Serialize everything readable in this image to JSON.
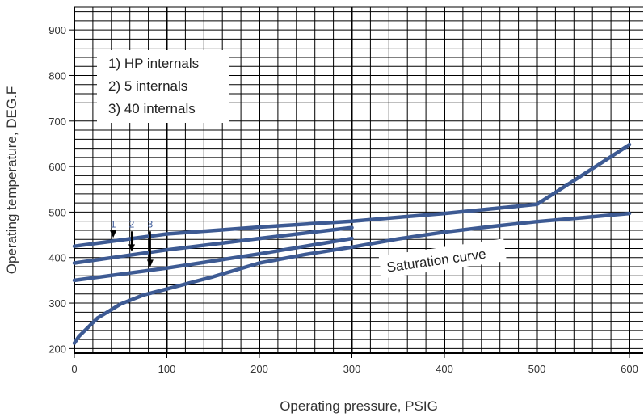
{
  "chart_data": {
    "type": "line",
    "title": "",
    "xlabel": "Operating pressure, PSIG",
    "ylabel": "Operating temperature, DEG.F",
    "xlim": [
      0,
      600
    ],
    "ylim": [
      190,
      950
    ],
    "x_ticks": [
      0,
      100,
      200,
      300,
      400,
      500,
      600
    ],
    "y_ticks": [
      200,
      300,
      400,
      500,
      600,
      700,
      800,
      900
    ],
    "grid": true,
    "line_color": "#3d5a93",
    "legend": [
      "1) HP internals",
      "2) 5 internals",
      "3) 40 internals"
    ],
    "series": [
      {
        "name": "1",
        "x": [
          0,
          100,
          200,
          300,
          400,
          500,
          600
        ],
        "y": [
          425,
          452,
          467,
          480,
          497,
          517,
          648
        ]
      },
      {
        "name": "2",
        "x": [
          0,
          100,
          200,
          300
        ],
        "y": [
          388,
          417,
          442,
          466
        ]
      },
      {
        "name": "3",
        "x": [
          0,
          100,
          200,
          300
        ],
        "y": [
          350,
          377,
          408,
          442
        ]
      },
      {
        "name": "Saturation curve",
        "x": [
          0,
          5,
          25,
          50,
          75,
          100,
          150,
          200,
          250,
          300,
          350,
          400,
          450,
          500,
          550,
          600
        ],
        "y": [
          212,
          227,
          267,
          298,
          318,
          331,
          358,
          388,
          407,
          423,
          441,
          456,
          468,
          479,
          488,
          497
        ]
      }
    ],
    "annotations": [
      {
        "text": "1",
        "x": 42,
        "y": 463
      },
      {
        "text": "2",
        "x": 62,
        "y": 463
      },
      {
        "text": "3",
        "x": 82,
        "y": 463
      },
      {
        "text": "Saturation curve",
        "x": 400,
        "y": 410
      }
    ]
  }
}
